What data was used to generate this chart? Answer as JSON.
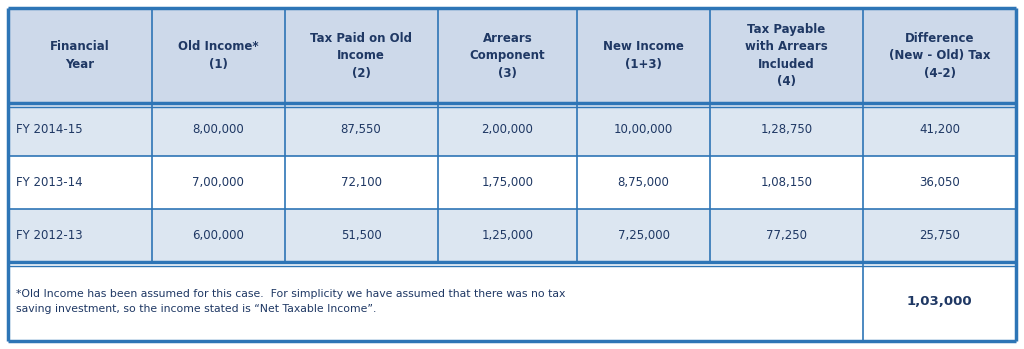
{
  "col_headers": [
    "Financial\nYear",
    "Old Income*\n(1)",
    "Tax Paid on Old\nIncome\n(2)",
    "Arrears\nComponent\n(3)",
    "New Income\n(1+3)",
    "Tax Payable\nwith Arrears\nIncluded\n(4)",
    "Difference\n(New - Old) Tax\n(4-2)"
  ],
  "rows": [
    [
      "FY 2014-15",
      "8,00,000",
      "87,550",
      "2,00,000",
      "10,00,000",
      "1,28,750",
      "41,200"
    ],
    [
      "FY 2013-14",
      "7,00,000",
      "72,100",
      "1,75,000",
      "8,75,000",
      "1,08,150",
      "36,050"
    ],
    [
      "FY 2012-13",
      "6,00,000",
      "51,500",
      "1,25,000",
      "7,25,000",
      "77,250",
      "25,750"
    ]
  ],
  "footer_note": "*Old Income has been assumed for this case.  For simplicity we have assumed that there was no tax\nsaving investment, so the income stated is “Net Taxable Income”.",
  "footer_value": "1,03,000",
  "header_bg": "#cdd9ea",
  "row_bg_even": "#dce6f1",
  "row_bg_odd": "#ffffff",
  "header_text_color": "#1f3864",
  "data_text_color": "#1f3864",
  "border_color": "#2e75b6",
  "footer_bg": "#ffffff",
  "outer_border_color": "#2e75b6",
  "col_widths_raw": [
    1.08,
    1.0,
    1.15,
    1.05,
    1.0,
    1.15,
    1.15
  ],
  "header_fontsize": 8.5,
  "data_fontsize": 8.5,
  "footer_fontsize": 7.8,
  "footer_val_fontsize": 9.5
}
